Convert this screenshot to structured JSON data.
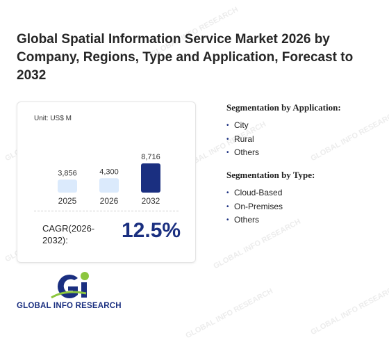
{
  "title": "Global Spatial Information Service Market 2026 by Company, Regions, Type and Application, Forecast to 2032",
  "chart_data": {
    "type": "bar",
    "unit": "Unit: US$ M",
    "categories": [
      "2025",
      "2026",
      "2032"
    ],
    "values": [
      3856,
      4300,
      8716
    ],
    "value_labels": [
      "3,856",
      "4,300",
      "8,716"
    ],
    "colors": [
      "#dbeafc",
      "#dbeafc",
      "#1a2f80"
    ],
    "ylim": [
      0,
      8716
    ]
  },
  "cagr": {
    "label": "CAGR(2026-2032):",
    "value": "12.5%"
  },
  "segmentation_application": {
    "title": "Segmentation by Application:",
    "items": [
      "City",
      "Rural",
      "Others"
    ]
  },
  "segmentation_type": {
    "title": "Segmentation by Type:",
    "items": [
      "Cloud-Based",
      "On-Premises",
      "Others"
    ]
  },
  "logo": {
    "text": "GLOBAL INFO RESEARCH",
    "watermark": "GLOBAL INFO RESEARCH"
  }
}
